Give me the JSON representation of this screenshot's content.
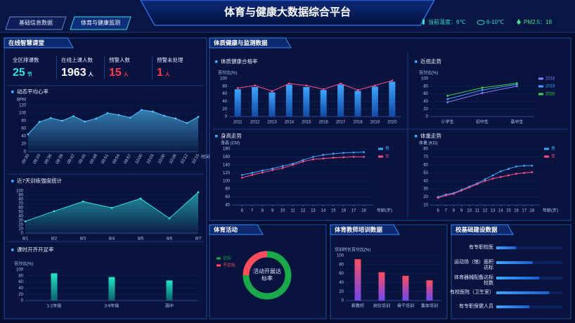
{
  "header": {
    "title": "体育与健康大数据综合平台",
    "tabs": [
      "基础信息数据",
      "体育与健康监测"
    ],
    "weather": [
      "当前温度：6℃",
      "6-10℃",
      "PM2.5：18"
    ]
  },
  "panels": [
    "在线智慧课堂",
    "体质健康与监测数据",
    "体育活动",
    "体育教师培训数据",
    "校基础建设数据"
  ],
  "stats": [
    {
      "label": "全区排课数",
      "value": 25,
      "unit": "节",
      "color": "#35e0e0"
    },
    {
      "label": "在线上课人数",
      "value": 1963,
      "unit": "人",
      "color": "#ffffff"
    },
    {
      "label": "预警人数",
      "value": 15,
      "unit": "人",
      "color": "#ff3b4e"
    },
    {
      "label": "预警未处理",
      "value": 1,
      "unit": "人",
      "color": "#ff3b4e"
    }
  ],
  "chart_data": [
    {
      "type": "area",
      "title": "动态平均心率",
      "y_label": "BPM",
      "x_label": "时间",
      "categories": [
        "09:30",
        "09:33",
        "09:36",
        "09:39",
        "09:42",
        "09:45",
        "09:48",
        "09:51",
        "09:54",
        "09:57",
        "10:00",
        "10:03",
        "10:06",
        "10:09",
        "10:12",
        "10:15"
      ],
      "values": [
        45,
        77,
        87,
        80,
        92,
        78,
        86,
        100,
        95,
        88,
        108,
        104,
        93,
        86,
        74,
        90
      ],
      "color": "#4fc3ff",
      "ylim": [
        0,
        120
      ],
      "yticks": [
        0,
        20,
        40,
        60,
        80,
        100,
        120
      ],
      "grid": true
    },
    {
      "type": "area",
      "title": "近7天训练强度统计",
      "categories": [
        "8/1",
        "8/2",
        "8/3",
        "8/4",
        "8/5",
        "8/6",
        "8/7"
      ],
      "values": [
        28,
        52,
        75,
        60,
        82,
        35,
        97
      ],
      "color": "#35e0e0",
      "ylim": [
        0,
        100
      ],
      "yticks": [
        0,
        10,
        20,
        30,
        40,
        50,
        60,
        70,
        80,
        90,
        100
      ],
      "grid": true
    },
    {
      "type": "bar",
      "title": "课时开齐开足率",
      "y_label": "百分比(%)",
      "categories": [
        "1-2年级",
        "3-9年级",
        "高中"
      ],
      "values": [
        88,
        76,
        65
      ],
      "color": [
        "#22e8c8",
        "#0b6b74"
      ],
      "ylim": [
        0,
        100
      ],
      "yticks": [
        0,
        20,
        40,
        60,
        80,
        100
      ],
      "grid": true
    },
    {
      "type": "barline",
      "title": "体质健康合格率",
      "y_label": "百分比(%)",
      "categories": [
        "2011",
        "2012",
        "2013",
        "2014",
        "2015",
        "2016",
        "2017",
        "2018",
        "2019",
        "2020"
      ],
      "series": [
        {
          "type": "bar",
          "color": [
            "#3ea6ff",
            "#1250b0"
          ],
          "values": [
            72,
            78,
            64,
            84,
            78,
            70,
            84,
            68,
            79,
            92
          ]
        },
        {
          "type": "line",
          "color": "#ff4d8a",
          "values": [
            75,
            82,
            67,
            87,
            82,
            72,
            87,
            70,
            82,
            95
          ]
        }
      ],
      "ylim": [
        0,
        100
      ],
      "yticks": [
        0,
        20,
        40,
        60,
        80,
        100
      ],
      "grid": true
    },
    {
      "type": "line",
      "title": "近视走势",
      "y_label": "百分比(%)",
      "categories": [
        "小学生",
        "初中生",
        "高中生"
      ],
      "series": [
        {
          "name": "2018",
          "color": "#8a7cff",
          "values": [
            38,
            62,
            80
          ]
        },
        {
          "name": "2019",
          "color": "#3ea6ff",
          "values": [
            46,
            70,
            85
          ]
        },
        {
          "name": "2020",
          "color": "#3ed34a",
          "values": [
            55,
            76,
            88
          ]
        }
      ],
      "ylim": [
        0,
        100
      ],
      "yticks": [
        0,
        20,
        40,
        60,
        80,
        100
      ],
      "grid": true,
      "legend": "right"
    },
    {
      "type": "line",
      "title": "身高走势",
      "y_label": "身高 (CM)",
      "x_label": "年龄(岁)",
      "x": [
        6,
        7,
        8,
        9,
        10,
        11,
        12,
        13,
        14,
        15,
        16,
        17,
        18
      ],
      "xlim": [
        5,
        19
      ],
      "xticks": [
        6,
        7,
        8,
        9,
        10,
        11,
        12,
        13,
        14,
        15,
        16,
        17,
        18
      ],
      "series": [
        {
          "name": "男",
          "color": "#3ea6ff",
          "values": [
            115,
            120,
            126,
            131,
            137,
            143,
            152,
            160,
            165,
            168,
            170,
            171,
            172
          ]
        },
        {
          "name": "女",
          "color": "#ff4d8a",
          "values": [
            108,
            115,
            121,
            127,
            132,
            140,
            148,
            154,
            156,
            158,
            159,
            160,
            160
          ]
        }
      ],
      "ylim": [
        40,
        180
      ],
      "yticks": [
        40,
        60,
        80,
        100,
        120,
        140,
        160,
        180
      ],
      "grid": true,
      "legend": "right"
    },
    {
      "type": "line",
      "title": "体重走势",
      "y_label": "体重 (KG)",
      "x_label": "年龄(岁)",
      "x": [
        6,
        7,
        8,
        9,
        10,
        11,
        12,
        13,
        14,
        15,
        16,
        17,
        18
      ],
      "xlim": [
        5,
        19
      ],
      "xticks": [
        6,
        7,
        8,
        9,
        10,
        11,
        12,
        13,
        14,
        15,
        16,
        17,
        18
      ],
      "series": [
        {
          "name": "男",
          "color": "#3ea6ff",
          "values": [
            20,
            23,
            25,
            29,
            33,
            37,
            42,
            47,
            52,
            55,
            58,
            59,
            59
          ]
        },
        {
          "name": "女",
          "color": "#ff4d8a",
          "values": [
            19,
            22,
            24,
            28,
            32,
            36,
            40,
            43,
            45,
            47,
            49,
            50,
            51
          ]
        }
      ],
      "ylim": [
        10,
        80
      ],
      "yticks": [
        10,
        20,
        30,
        40,
        50,
        60,
        70,
        80
      ],
      "grid": true,
      "legend": "right"
    },
    {
      "type": "donut",
      "center_label": "活动开展达标率",
      "categories": [
        "达标",
        "不达标"
      ],
      "values": [
        75,
        25
      ],
      "colors": [
        "#19a84a",
        "#ff4d5e"
      ]
    },
    {
      "type": "bar",
      "y_label": "培训时长百分比(%)",
      "categories": [
        "新教师",
        "岗位培训",
        "骨干培训",
        "集体培训"
      ],
      "values": [
        92,
        63,
        55,
        45
      ],
      "color": [
        "#ff4d5e",
        "#7b4dff"
      ],
      "ylim": [
        0,
        100
      ],
      "yticks": [
        0,
        20,
        40,
        60,
        80,
        100
      ],
      "grid": true
    },
    {
      "type": "hbar",
      "categories": [
        "有专职校医",
        "运动场（馆）面积达标",
        "体育器械配备达标校数",
        "有校医院（卫生室）",
        "有专职保健人员"
      ],
      "values": [
        30,
        55,
        65,
        80,
        50
      ],
      "color": "#3ea6ff",
      "xlim": [
        0,
        100
      ]
    }
  ]
}
